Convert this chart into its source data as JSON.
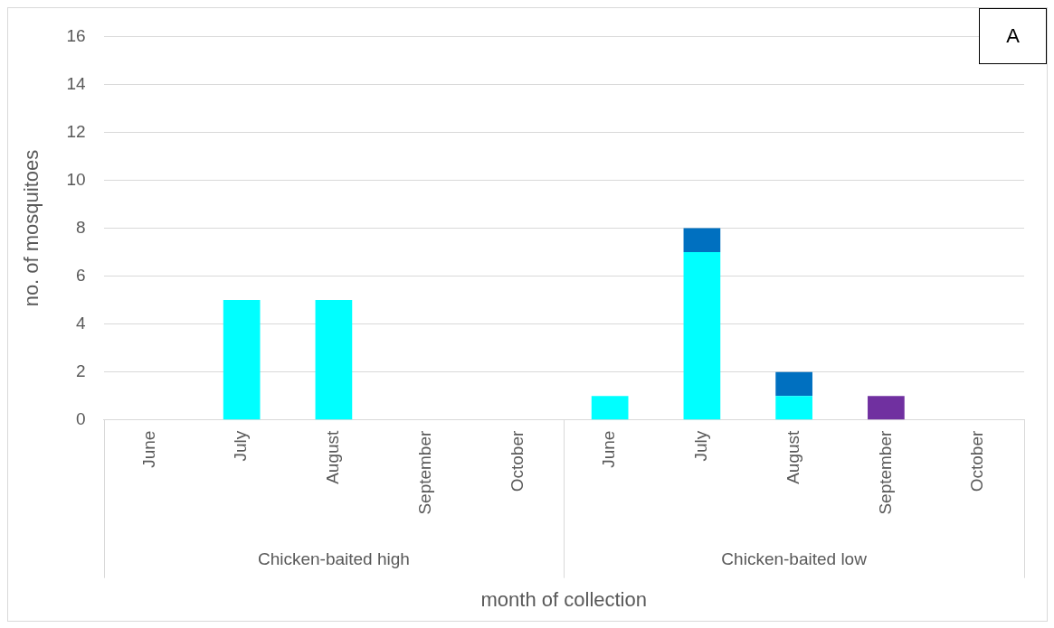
{
  "chart_data": {
    "type": "bar",
    "stacked": true,
    "ylabel": "no. of mosquitoes",
    "xlabel": "month of collection",
    "categories": [
      "June",
      "July",
      "August",
      "September",
      "October",
      "June",
      "July",
      "August",
      "September",
      "October"
    ],
    "series": [
      {
        "color": "#00ffff",
        "values": [
          0,
          5,
          5,
          0,
          0,
          1,
          7,
          1,
          0,
          0
        ]
      },
      {
        "color": "#0070c0",
        "values": [
          0,
          0,
          0,
          0,
          0,
          0,
          1,
          1,
          0,
          0
        ]
      },
      {
        "color": "#7030a0",
        "values": [
          0,
          0,
          0,
          0,
          0,
          0,
          0,
          0,
          1,
          0
        ]
      }
    ],
    "ylim": [
      0,
      16
    ],
    "yticks": [
      0,
      2,
      4,
      6,
      8,
      10,
      12,
      14,
      16
    ],
    "grid": "y",
    "legend": false,
    "annotations": [
      "Chicken-baited high",
      "Chicken-baited low",
      "A"
    ]
  }
}
